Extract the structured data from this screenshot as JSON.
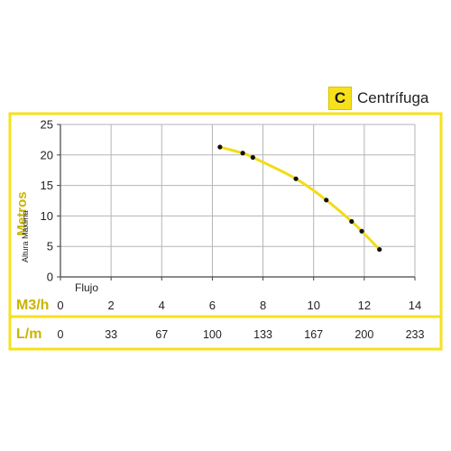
{
  "header": {
    "letter": "C",
    "title": "Centrífuga"
  },
  "colors": {
    "accent": "#f7e11a",
    "label": "#c8b400",
    "grid": "#b5b5b5",
    "curve": "#f2dc17",
    "point": "#111111"
  },
  "chart_data": {
    "type": "line",
    "title": "",
    "xlabel": "Flujo",
    "ylabel": "Metros",
    "ylabel_sub": "Altura Maxima",
    "xlim": [
      0,
      14
    ],
    "ylim": [
      0,
      25
    ],
    "grid": true,
    "x_unit_primary": "M3/h",
    "x_unit_secondary": "L/m",
    "x_ticks": [
      "0",
      "2",
      "4",
      "6",
      "8",
      "10",
      "12",
      "14"
    ],
    "x_ticks_lm": [
      "0",
      "33",
      "67",
      "100",
      "133",
      "167",
      "200",
      "233"
    ],
    "y_ticks": [
      "0",
      "5",
      "10",
      "15",
      "20",
      "25"
    ],
    "series": [
      {
        "points": [
          {
            "x": 6.3,
            "y": 21.3
          },
          {
            "x": 7.2,
            "y": 20.3
          },
          {
            "x": 7.6,
            "y": 19.6
          },
          {
            "x": 9.3,
            "y": 16.1
          },
          {
            "x": 10.5,
            "y": 12.6
          },
          {
            "x": 11.5,
            "y": 9.1
          },
          {
            "x": 11.9,
            "y": 7.5
          },
          {
            "x": 12.6,
            "y": 4.5
          }
        ]
      }
    ]
  }
}
